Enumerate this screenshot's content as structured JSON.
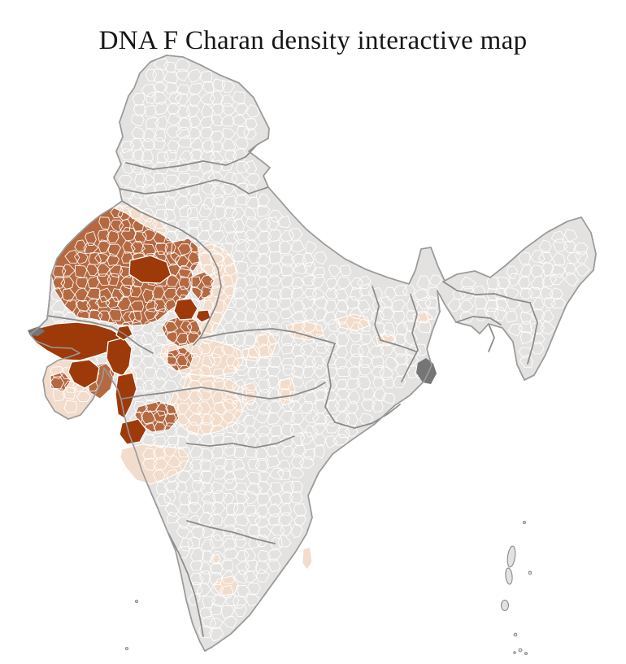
{
  "title": "DNA F Charan density interactive map",
  "map": {
    "name": "india-district-density-choropleth",
    "region_shown": "India (district level)",
    "colors": {
      "background": "#ffffff",
      "title_text": "#161616",
      "land": "#e3e2e0",
      "low": "#f2dccb",
      "medium": "#b56941",
      "high": "#9e3a0a",
      "special": "#757575",
      "district_border": "#ffffff",
      "state_border": "#8a8a8a",
      "outline": "#9a9a9a"
    },
    "density_scale": [
      {
        "level": "no data",
        "color_key": "land"
      },
      {
        "level": "low",
        "color_key": "low"
      },
      {
        "level": "medium",
        "color_key": "medium"
      },
      {
        "level": "high",
        "color_key": "high"
      }
    ]
  }
}
